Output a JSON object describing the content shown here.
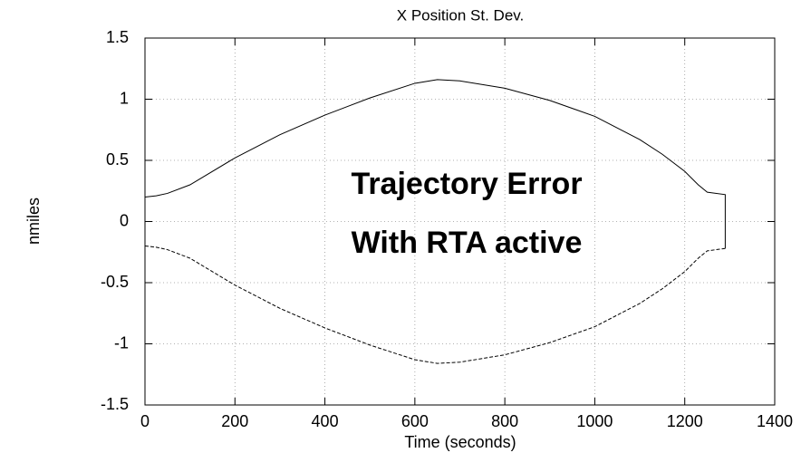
{
  "chart_data": {
    "type": "line",
    "title": "X Position St. Dev.",
    "xlabel": "Time (seconds)",
    "ylabel": "nmiles",
    "annotations": [
      "Trajectory Error",
      "With RTA active"
    ],
    "series": [
      {
        "name": "upper",
        "color": "#000000",
        "dash": false,
        "x": [
          0,
          25,
          50,
          100,
          200,
          300,
          400,
          500,
          600,
          650,
          700,
          800,
          900,
          1000,
          1100,
          1150,
          1200,
          1230,
          1250,
          1290,
          1290
        ],
        "values": [
          0.2,
          0.21,
          0.23,
          0.3,
          0.52,
          0.71,
          0.87,
          1.01,
          1.13,
          1.16,
          1.15,
          1.09,
          0.99,
          0.86,
          0.67,
          0.55,
          0.41,
          0.3,
          0.24,
          0.22,
          -0.22
        ]
      },
      {
        "name": "lower",
        "color": "#000000",
        "dash": true,
        "x": [
          0,
          25,
          50,
          100,
          200,
          300,
          400,
          500,
          600,
          650,
          700,
          800,
          900,
          1000,
          1100,
          1150,
          1200,
          1230,
          1250,
          1290
        ],
        "values": [
          -0.2,
          -0.21,
          -0.23,
          -0.3,
          -0.52,
          -0.71,
          -0.87,
          -1.01,
          -1.13,
          -1.16,
          -1.15,
          -1.09,
          -0.99,
          -0.86,
          -0.67,
          -0.55,
          -0.41,
          -0.3,
          -0.24,
          -0.22
        ]
      }
    ],
    "xlim": [
      0,
      1400
    ],
    "xticks": [
      0,
      200,
      400,
      600,
      800,
      1000,
      1200,
      1400
    ],
    "ylim": [
      -1.5,
      1.5
    ],
    "yticks": [
      -1.5,
      -1,
      -0.5,
      0,
      0.5,
      1,
      1.5
    ],
    "grid": true
  }
}
